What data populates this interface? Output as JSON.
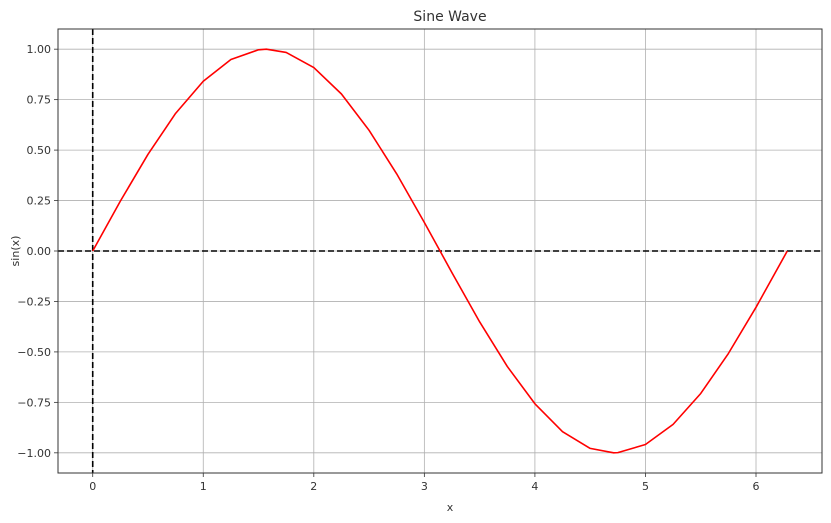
{
  "chart_data": {
    "type": "line",
    "title": "Sine Wave",
    "xlabel": "x",
    "ylabel": "sin(x)",
    "xlim": [
      -0.314,
      6.597
    ],
    "ylim": [
      -1.1,
      1.1
    ],
    "grid": true,
    "x_ticks": [
      0,
      1,
      2,
      3,
      4,
      5,
      6
    ],
    "x_tick_labels": [
      "0",
      "1",
      "2",
      "3",
      "4",
      "5",
      "6"
    ],
    "y_ticks": [
      -1.0,
      -0.75,
      -0.5,
      -0.25,
      0.0,
      0.25,
      0.5,
      0.75,
      1.0
    ],
    "y_tick_labels": [
      "−1.00",
      "−0.75",
      "−0.50",
      "−0.25",
      "0.00",
      "0.25",
      "0.50",
      "0.75",
      "1.00"
    ],
    "reference_lines": [
      {
        "orientation": "horizontal",
        "value": 0,
        "style": "dashed",
        "color": "#000000"
      },
      {
        "orientation": "vertical",
        "value": 0,
        "style": "dashed",
        "color": "#000000"
      }
    ],
    "series": [
      {
        "color": "#ff0000",
        "x": [
          0.0,
          0.25,
          0.5,
          0.75,
          1.0,
          1.25,
          1.5,
          1.571,
          1.75,
          2.0,
          2.25,
          2.5,
          2.75,
          3.0,
          3.142,
          3.25,
          3.5,
          3.75,
          4.0,
          4.25,
          4.5,
          4.712,
          4.75,
          5.0,
          5.25,
          5.5,
          5.75,
          6.0,
          6.283
        ],
        "y": [
          0.0,
          0.247,
          0.479,
          0.682,
          0.841,
          0.949,
          0.997,
          1.0,
          0.984,
          0.909,
          0.778,
          0.598,
          0.382,
          0.141,
          0.0,
          -0.108,
          -0.351,
          -0.572,
          -0.757,
          -0.895,
          -0.978,
          -1.0,
          -0.999,
          -0.959,
          -0.859,
          -0.706,
          -0.508,
          -0.279,
          0.0
        ]
      }
    ]
  }
}
